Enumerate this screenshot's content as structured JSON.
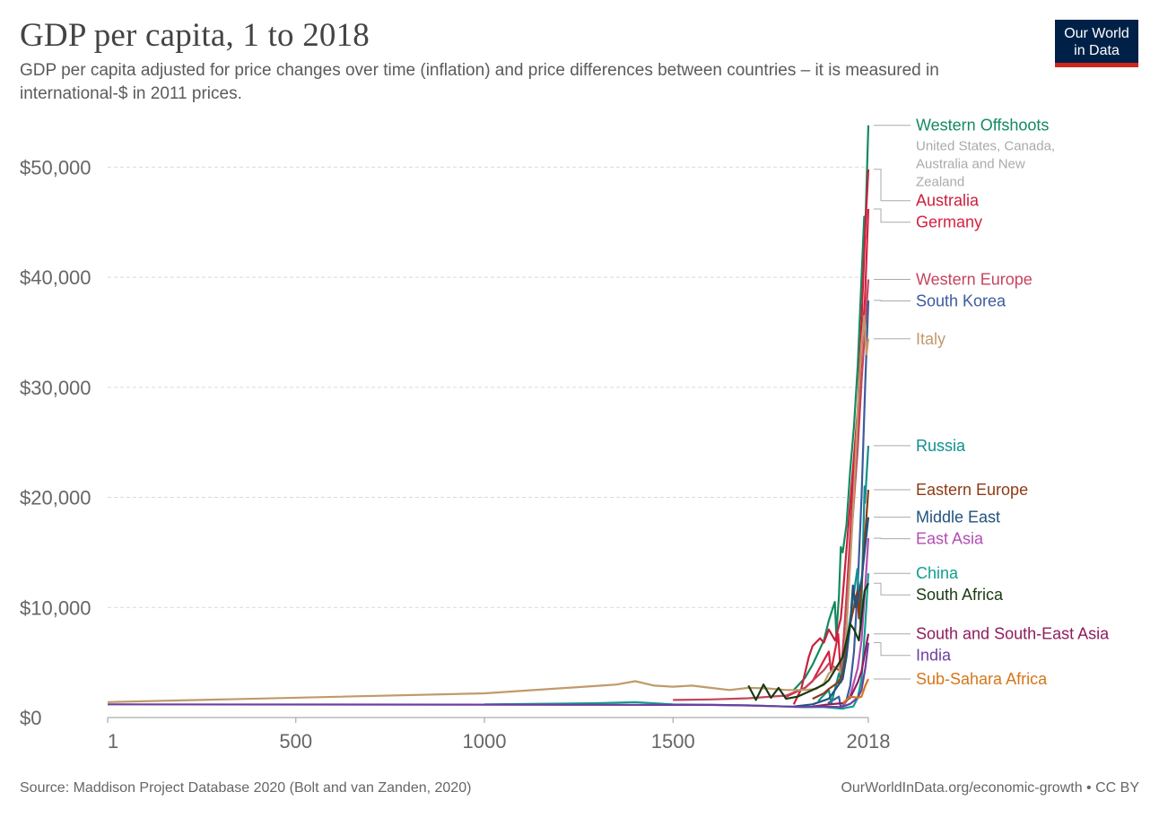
{
  "header": {
    "title": "GDP per capita, 1 to 2018",
    "subtitle": "GDP per capita adjusted for price changes over time (inflation) and price differences between countries – it is measured in international-$ in 2011 prices."
  },
  "logo": {
    "line1": "Our World",
    "line2": "in Data",
    "bg": "#002147",
    "accent": "#ce261e"
  },
  "footer": {
    "source": "Source: Maddison Project Database 2020 (Bolt and van Zanden, 2020)",
    "url": "OurWorldInData.org/economic-growth • CC BY"
  },
  "chart_data": {
    "type": "line",
    "title": "GDP per capita, 1 to 2018",
    "xlim": [
      1,
      2018
    ],
    "ylim": [
      0,
      55000
    ],
    "x_ticks": [
      1,
      500,
      1000,
      1500,
      2018
    ],
    "y_ticks": [
      0,
      10000,
      20000,
      30000,
      40000,
      50000
    ],
    "y_tick_labels": [
      "$0",
      "$10,000",
      "$20,000",
      "$30,000",
      "$40,000",
      "$50,000"
    ],
    "grid": "horizontal-dashed",
    "legend": "right-labels",
    "series": [
      {
        "name": "Western Offshoots",
        "note": "United States, Canada, Australia and New Zealand",
        "color": "#138a5e",
        "points": [
          [
            1820,
            2500
          ],
          [
            1850,
            3600
          ],
          [
            1870,
            4800
          ],
          [
            1900,
            7000
          ],
          [
            1913,
            8800
          ],
          [
            1929,
            10500
          ],
          [
            1933,
            7500
          ],
          [
            1940,
            11000
          ],
          [
            1945,
            15500
          ],
          [
            1950,
            15000
          ],
          [
            1960,
            17500
          ],
          [
            1970,
            22500
          ],
          [
            1980,
            26500
          ],
          [
            1990,
            32000
          ],
          [
            2000,
            40000
          ],
          [
            2007,
            45500
          ],
          [
            2009,
            43500
          ],
          [
            2018,
            53800
          ]
        ]
      },
      {
        "name": "Australia",
        "color": "#c8213c",
        "points": [
          [
            1820,
            1200
          ],
          [
            1840,
            2600
          ],
          [
            1860,
            5500
          ],
          [
            1870,
            6500
          ],
          [
            1890,
            7200
          ],
          [
            1900,
            6800
          ],
          [
            1913,
            8000
          ],
          [
            1930,
            7000
          ],
          [
            1945,
            9000
          ],
          [
            1950,
            11000
          ],
          [
            1970,
            19500
          ],
          [
            1990,
            28000
          ],
          [
            2000,
            36000
          ],
          [
            2010,
            44500
          ],
          [
            2018,
            49800
          ]
        ]
      },
      {
        "name": "Germany",
        "color": "#d6203f",
        "points": [
          [
            1800,
            1900
          ],
          [
            1850,
            2700
          ],
          [
            1870,
            3300
          ],
          [
            1900,
            5200
          ],
          [
            1913,
            6000
          ],
          [
            1919,
            4200
          ],
          [
            1938,
            7600
          ],
          [
            1946,
            3200
          ],
          [
            1950,
            5800
          ],
          [
            1960,
            11000
          ],
          [
            1970,
            16500
          ],
          [
            1980,
            22500
          ],
          [
            1990,
            27000
          ],
          [
            2000,
            33500
          ],
          [
            2009,
            38000
          ],
          [
            2018,
            46200
          ]
        ]
      },
      {
        "name": "Western Europe",
        "color": "#c6445e",
        "points": [
          [
            1500,
            1600
          ],
          [
            1600,
            1650
          ],
          [
            1700,
            1750
          ],
          [
            1800,
            2000
          ],
          [
            1850,
            2700
          ],
          [
            1900,
            4300
          ],
          [
            1913,
            4900
          ],
          [
            1945,
            4200
          ],
          [
            1950,
            6000
          ],
          [
            1970,
            15000
          ],
          [
            1990,
            24500
          ],
          [
            2000,
            30500
          ],
          [
            2018,
            39800
          ]
        ]
      },
      {
        "name": "South Korea",
        "color": "#3b5b9c",
        "points": [
          [
            1911,
            1300
          ],
          [
            1940,
            1900
          ],
          [
            1945,
            900
          ],
          [
            1953,
            1200
          ],
          [
            1960,
            1600
          ],
          [
            1970,
            2900
          ],
          [
            1980,
            6000
          ],
          [
            1990,
            12000
          ],
          [
            2000,
            20000
          ],
          [
            2010,
            30500
          ],
          [
            2018,
            37900
          ]
        ]
      },
      {
        "name": "Italy",
        "color": "#c19a6b",
        "points": [
          [
            1,
            1400
          ],
          [
            1000,
            2200
          ],
          [
            1310,
            2900
          ],
          [
            1350,
            3000
          ],
          [
            1400,
            3300
          ],
          [
            1450,
            2900
          ],
          [
            1500,
            2800
          ],
          [
            1550,
            2900
          ],
          [
            1600,
            2700
          ],
          [
            1650,
            2500
          ],
          [
            1700,
            2700
          ],
          [
            1750,
            2650
          ],
          [
            1800,
            2500
          ],
          [
            1850,
            2500
          ],
          [
            1880,
            2600
          ],
          [
            1900,
            3100
          ],
          [
            1913,
            4000
          ],
          [
            1940,
            4800
          ],
          [
            1945,
            3200
          ],
          [
            1950,
            4800
          ],
          [
            1960,
            8000
          ],
          [
            1970,
            14000
          ],
          [
            1980,
            20500
          ],
          [
            1990,
            28000
          ],
          [
            2000,
            34000
          ],
          [
            2007,
            36500
          ],
          [
            2013,
            33000
          ],
          [
            2018,
            34400
          ]
        ]
      },
      {
        "name": "Russia",
        "color": "#109090",
        "points": [
          [
            1885,
            1500
          ],
          [
            1913,
            2500
          ],
          [
            1920,
            1300
          ],
          [
            1940,
            4000
          ],
          [
            1945,
            3500
          ],
          [
            1950,
            4500
          ],
          [
            1970,
            9000
          ],
          [
            1989,
            13500
          ],
          [
            1998,
            8000
          ],
          [
            2008,
            21000
          ],
          [
            2009,
            19500
          ],
          [
            2018,
            24700
          ]
        ]
      },
      {
        "name": "Eastern Europe",
        "color": "#8c3b17",
        "points": [
          [
            1870,
            1700
          ],
          [
            1900,
            2200
          ],
          [
            1913,
            2600
          ],
          [
            1938,
            3200
          ],
          [
            1950,
            4000
          ],
          [
            1970,
            8500
          ],
          [
            1989,
            11500
          ],
          [
            1993,
            9000
          ],
          [
            2000,
            12000
          ],
          [
            2018,
            20700
          ]
        ]
      },
      {
        "name": "Middle East",
        "color": "#21527e",
        "points": [
          [
            1820,
            1000
          ],
          [
            1870,
            1200
          ],
          [
            1913,
            1700
          ],
          [
            1950,
            3500
          ],
          [
            1960,
            5500
          ],
          [
            1970,
            8500
          ],
          [
            1977,
            12000
          ],
          [
            1985,
            10000
          ],
          [
            2000,
            12500
          ],
          [
            2018,
            18200
          ]
        ]
      },
      {
        "name": "East Asia",
        "color": "#b34db4",
        "points": [
          [
            1950,
            1000
          ],
          [
            1970,
            2000
          ],
          [
            1990,
            4500
          ],
          [
            2000,
            7000
          ],
          [
            2010,
            12000
          ],
          [
            2018,
            16300
          ]
        ]
      },
      {
        "name": "China",
        "color": "#119e8e",
        "points": [
          [
            1000,
            1200
          ],
          [
            1300,
            1300
          ],
          [
            1400,
            1400
          ],
          [
            1500,
            1200
          ],
          [
            1600,
            1150
          ],
          [
            1700,
            1100
          ],
          [
            1800,
            1000
          ],
          [
            1850,
            950
          ],
          [
            1900,
            950
          ],
          [
            1950,
            800
          ],
          [
            1960,
            900
          ],
          [
            1978,
            1000
          ],
          [
            1990,
            1800
          ],
          [
            2000,
            3500
          ],
          [
            2010,
            8500
          ],
          [
            2018,
            13100
          ]
        ]
      },
      {
        "name": "South Africa",
        "color": "#1a3a12",
        "points": [
          [
            1700,
            2900
          ],
          [
            1720,
            1600
          ],
          [
            1740,
            3000
          ],
          [
            1760,
            1800
          ],
          [
            1780,
            2700
          ],
          [
            1800,
            1700
          ],
          [
            1830,
            1900
          ],
          [
            1870,
            2500
          ],
          [
            1900,
            3000
          ],
          [
            1913,
            3400
          ],
          [
            1950,
            5500
          ],
          [
            1970,
            8500
          ],
          [
            1980,
            8000
          ],
          [
            1993,
            7000
          ],
          [
            2008,
            11500
          ],
          [
            2018,
            12200
          ]
        ]
      },
      {
        "name": "South and South-East Asia",
        "color": "#8e1d5c",
        "points": [
          [
            1870,
            1000
          ],
          [
            1913,
            1200
          ],
          [
            1950,
            1300
          ],
          [
            1970,
            1800
          ],
          [
            1990,
            3200
          ],
          [
            2000,
            4200
          ],
          [
            2018,
            7600
          ]
        ]
      },
      {
        "name": "India",
        "color": "#6d3fa0",
        "points": [
          [
            1,
            1200
          ],
          [
            1600,
            1150
          ],
          [
            1700,
            1100
          ],
          [
            1800,
            1000
          ],
          [
            1850,
            950
          ],
          [
            1900,
            1000
          ],
          [
            1947,
            950
          ],
          [
            1970,
            1250
          ],
          [
            1990,
            1800
          ],
          [
            2000,
            2500
          ],
          [
            2010,
            4500
          ],
          [
            2018,
            6800
          ]
        ]
      },
      {
        "name": "Sub-Sahara Africa",
        "color": "#d4761a",
        "points": [
          [
            1950,
            1300
          ],
          [
            1970,
            1900
          ],
          [
            1990,
            1800
          ],
          [
            2000,
            1900
          ],
          [
            2010,
            2900
          ],
          [
            2018,
            3500
          ]
        ]
      }
    ]
  }
}
